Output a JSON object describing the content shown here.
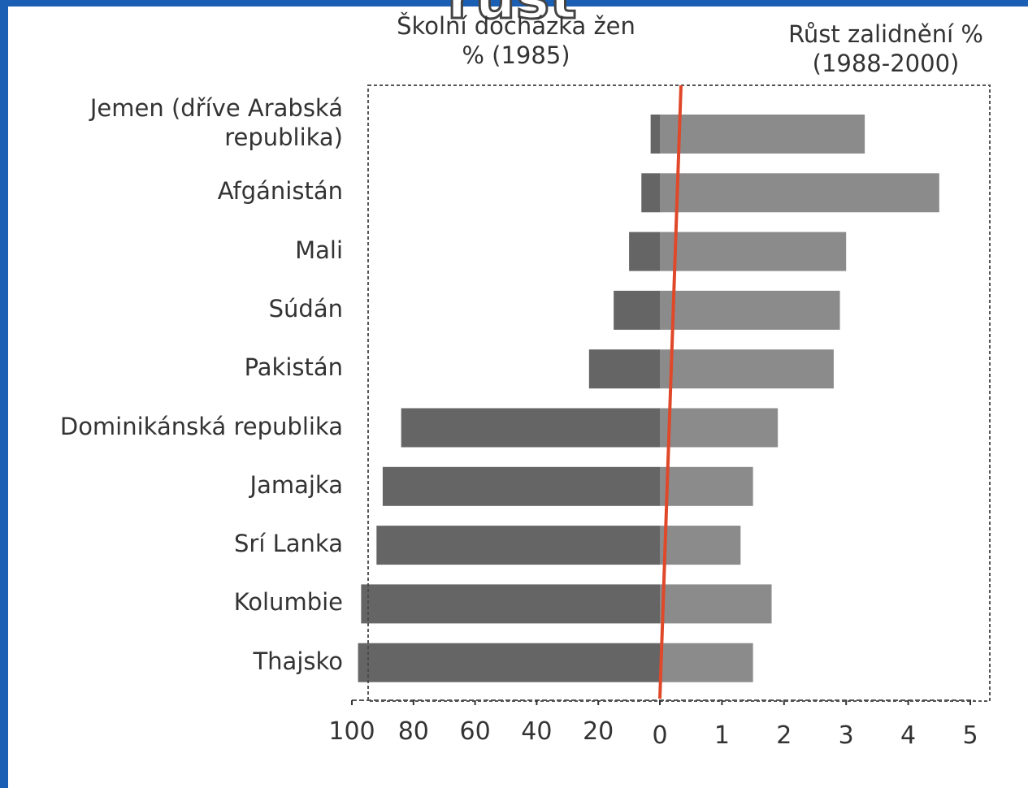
{
  "chart_data": {
    "type": "butterfly",
    "title": "rust",
    "categories": [
      "Jemen (dříve Arabská republika)",
      "Afgánistán",
      "Mali",
      "Súdán",
      "Pakistán",
      "Dominikánská republika",
      "Jamajka",
      "Srí Lanka",
      "Kolumbie",
      "Thajsko"
    ],
    "series": [
      {
        "name": "Školní docházka žen % (1985)",
        "color": "#4a4a4a",
        "values": [
          3,
          6,
          10,
          15,
          23,
          84,
          90,
          92,
          97,
          98
        ],
        "axis": "x"
      },
      {
        "name": "Růst zalidnění % (1988-2000)",
        "color": "#5a5a5a",
        "values": [
          3.3,
          4.5,
          3.0,
          2.9,
          2.8,
          1.9,
          1.5,
          1.3,
          1.8,
          1.5
        ],
        "axis": "x2"
      }
    ],
    "xlim": [
      100,
      0
    ],
    "xticks": [
      100,
      80,
      60,
      40,
      20
    ],
    "x2lim": [
      0,
      5
    ],
    "x2ticks": [
      0,
      1,
      2,
      3,
      4,
      5
    ]
  }
}
